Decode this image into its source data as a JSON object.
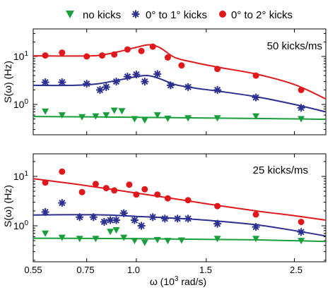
{
  "legend": [
    {
      "label": "no kicks",
      "marker": "triangle-down",
      "color": "#1a9e3c"
    },
    {
      "label": "0° to 1° kicks",
      "marker": "asterisk",
      "color": "#2b2f8f"
    },
    {
      "label": "0° to 2° kicks",
      "marker": "circle",
      "color": "#e0181b"
    }
  ],
  "colors": {
    "green": "#1a9e3c",
    "blue": "#2b2f8f",
    "red": "#e0181b"
  },
  "xaxis": {
    "label_pre": "ω (10",
    "label_sup": "3",
    "label_post": " rad/s)",
    "ticks": [
      0.55,
      0.75,
      1.0,
      1.5,
      2.5
    ],
    "tick_labels": [
      "0.55",
      "0.75",
      "1.0",
      "1.5",
      "2.5"
    ],
    "range": [
      0.55,
      3.0
    ],
    "scale": "log"
  },
  "chart_data": [
    {
      "type": "scatter",
      "annotation": "50 kicks/ms",
      "ylabel": "S(ω) (Hz)",
      "yscale": "log",
      "ylim": [
        0.1,
        30
      ],
      "ytick_labels": [
        {
          "base": "10",
          "exp": "1",
          "value": 10
        },
        {
          "base": "10",
          "exp": "0",
          "value": 1
        }
      ],
      "series": [
        {
          "name": "0° to 2° kicks",
          "points": [
            [
              0.59,
              10.5
            ],
            [
              0.65,
              12
            ],
            [
              0.75,
              10
            ],
            [
              0.82,
              10.5
            ],
            [
              0.88,
              11
            ],
            [
              0.95,
              14
            ],
            [
              1.03,
              13
            ],
            [
              1.1,
              16
            ],
            [
              1.2,
              9.5
            ],
            [
              1.3,
              6.5
            ],
            [
              1.6,
              5.5
            ],
            [
              2.0,
              4
            ],
            [
              2.6,
              2
            ]
          ],
          "fit": [
            [
              0.55,
              10.3
            ],
            [
              0.7,
              10.2
            ],
            [
              0.8,
              10.5
            ],
            [
              0.9,
              12.5
            ],
            [
              1.0,
              15.5
            ],
            [
              1.08,
              17.5
            ],
            [
              1.15,
              15
            ],
            [
              1.25,
              9.5
            ],
            [
              1.4,
              7.5
            ],
            [
              1.6,
              6
            ],
            [
              2.0,
              4.3
            ],
            [
              2.5,
              2.6
            ],
            [
              3.0,
              1.3
            ]
          ]
        },
        {
          "name": "0° to 1° kicks",
          "points": [
            [
              0.59,
              2.9
            ],
            [
              0.65,
              2.9
            ],
            [
              0.75,
              2.7
            ],
            [
              0.81,
              2.0
            ],
            [
              0.84,
              2.3
            ],
            [
              0.89,
              3.0
            ],
            [
              0.95,
              3.8
            ],
            [
              1.0,
              4.2
            ],
            [
              1.05,
              3.0
            ],
            [
              1.13,
              4.3
            ],
            [
              1.22,
              2.5
            ],
            [
              1.35,
              2.3
            ],
            [
              1.6,
              2.0
            ],
            [
              2.0,
              1.4
            ],
            [
              2.6,
              0.85
            ]
          ],
          "fit": [
            [
              0.55,
              2.5
            ],
            [
              0.7,
              2.5
            ],
            [
              0.8,
              2.7
            ],
            [
              0.9,
              3.2
            ],
            [
              1.0,
              3.8
            ],
            [
              1.07,
              4.0
            ],
            [
              1.15,
              3.4
            ],
            [
              1.25,
              2.6
            ],
            [
              1.4,
              2.2
            ],
            [
              1.6,
              1.9
            ],
            [
              2.0,
              1.45
            ],
            [
              2.5,
              1.0
            ],
            [
              3.0,
              0.7
            ]
          ]
        },
        {
          "name": "no kicks",
          "points": [
            [
              0.59,
              0.72
            ],
            [
              0.65,
              0.6
            ],
            [
              0.73,
              0.55
            ],
            [
              0.79,
              0.57
            ],
            [
              0.84,
              0.6
            ],
            [
              0.88,
              0.75
            ],
            [
              0.92,
              0.73
            ],
            [
              0.99,
              0.5
            ],
            [
              1.05,
              0.47
            ],
            [
              1.13,
              0.6
            ],
            [
              1.2,
              0.51
            ],
            [
              1.35,
              0.52
            ],
            [
              1.6,
              0.52
            ],
            [
              2.0,
              0.57
            ],
            [
              2.6,
              0.5
            ]
          ],
          "fit": [
            [
              0.55,
              0.56
            ],
            [
              1.0,
              0.54
            ],
            [
              1.5,
              0.52
            ],
            [
              2.0,
              0.51
            ],
            [
              2.5,
              0.5
            ],
            [
              3.0,
              0.49
            ]
          ]
        }
      ]
    },
    {
      "type": "scatter",
      "annotation": "25 kicks/ms",
      "ylabel": "S(ω) (Hz)",
      "yscale": "log",
      "ylim": [
        0.1,
        30
      ],
      "ytick_labels": [
        {
          "base": "10",
          "exp": "1",
          "value": 10
        },
        {
          "base": "10",
          "exp": "0",
          "value": 1
        }
      ],
      "series": [
        {
          "name": "0° to 2° kicks",
          "points": [
            [
              0.59,
              7.5
            ],
            [
              0.65,
              12.5
            ],
            [
              0.73,
              4.8
            ],
            [
              0.79,
              7.0
            ],
            [
              0.84,
              5.8
            ],
            [
              0.88,
              5.2
            ],
            [
              0.96,
              6.8
            ],
            [
              1.0,
              4.3
            ],
            [
              1.05,
              5.5
            ],
            [
              1.13,
              4.3
            ],
            [
              1.2,
              3.6
            ],
            [
              1.35,
              3.3
            ],
            [
              1.6,
              2.5
            ],
            [
              2.0,
              1.7
            ],
            [
              2.6,
              1.2
            ]
          ],
          "fit": [
            [
              0.55,
              9.0
            ],
            [
              0.7,
              7.0
            ],
            [
              0.85,
              5.6
            ],
            [
              1.0,
              4.6
            ],
            [
              1.2,
              3.7
            ],
            [
              1.5,
              2.8
            ],
            [
              2.0,
              2.0
            ],
            [
              2.5,
              1.6
            ],
            [
              3.0,
              1.3
            ]
          ]
        },
        {
          "name": "0° to 1° kicks",
          "points": [
            [
              0.59,
              1.9
            ],
            [
              0.65,
              2.9
            ],
            [
              0.72,
              1.5
            ],
            [
              0.78,
              1.5
            ],
            [
              0.83,
              1.2
            ],
            [
              0.86,
              1.3
            ],
            [
              0.89,
              1.3
            ],
            [
              0.93,
              1.8
            ],
            [
              0.99,
              1.3
            ],
            [
              1.03,
              1.0
            ],
            [
              1.1,
              1.5
            ],
            [
              1.18,
              1.4
            ],
            [
              1.27,
              1.4
            ],
            [
              1.35,
              1.4
            ],
            [
              1.6,
              1.1
            ],
            [
              2.0,
              0.95
            ],
            [
              2.6,
              0.75
            ]
          ],
          "fit": [
            [
              0.55,
              1.65
            ],
            [
              0.7,
              1.68
            ],
            [
              0.85,
              1.65
            ],
            [
              1.0,
              1.55
            ],
            [
              1.2,
              1.45
            ],
            [
              1.5,
              1.3
            ],
            [
              2.0,
              1.05
            ],
            [
              2.5,
              0.8
            ],
            [
              3.0,
              0.62
            ]
          ]
        },
        {
          "name": "no kicks",
          "points": [
            [
              0.59,
              0.7
            ],
            [
              0.65,
              0.58
            ],
            [
              0.72,
              0.55
            ],
            [
              0.79,
              0.55
            ],
            [
              0.86,
              0.76
            ],
            [
              0.89,
              0.82
            ],
            [
              0.93,
              0.58
            ],
            [
              0.99,
              0.5
            ],
            [
              1.05,
              0.46
            ],
            [
              1.13,
              0.52
            ],
            [
              1.2,
              0.5
            ],
            [
              1.3,
              0.51
            ],
            [
              1.6,
              0.55
            ],
            [
              2.0,
              0.55
            ],
            [
              2.6,
              0.5
            ]
          ],
          "fit": [
            [
              0.55,
              0.56
            ],
            [
              1.0,
              0.55
            ],
            [
              1.5,
              0.53
            ],
            [
              2.0,
              0.52
            ],
            [
              2.5,
              0.5
            ],
            [
              3.0,
              0.48
            ]
          ]
        }
      ]
    }
  ]
}
